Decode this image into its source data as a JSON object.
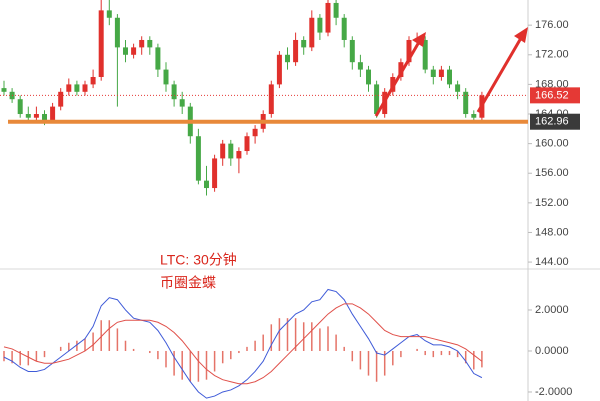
{
  "chart_data": [
    {
      "type": "candlestick",
      "annotations": [
        "LTC: 30分钟",
        "币圈金蝶"
      ],
      "up_color": "#e0302c",
      "down_color": "#46a846",
      "ylim": [
        143.2,
        179.4
      ],
      "yticks": [
        {
          "value": 144,
          "label": "144.00"
        },
        {
          "value": 148,
          "label": "148.00"
        },
        {
          "value": 152,
          "label": "152.00"
        },
        {
          "value": 156,
          "label": "156.00"
        },
        {
          "value": 160,
          "label": "160.00"
        },
        {
          "value": 164,
          "label": "164.00"
        },
        {
          "value": 168,
          "label": "168.00"
        },
        {
          "value": 172,
          "label": "172.00"
        },
        {
          "value": 176,
          "label": "176.00"
        }
      ],
      "last_price": 166.52,
      "last_price_color": "#e53935",
      "support_level": 162.96,
      "support_color": "#e8893a",
      "candles": [
        [
          167.5,
          168.5,
          166.5,
          167
        ],
        [
          167,
          167.5,
          165.5,
          166
        ],
        [
          166,
          166.5,
          163.5,
          164
        ],
        [
          164,
          165,
          162.8,
          163.5
        ],
        [
          163.5,
          165,
          163,
          164
        ],
        [
          164,
          164.5,
          162.5,
          163
        ],
        [
          163,
          165.5,
          162.8,
          165
        ],
        [
          165,
          167.5,
          164.5,
          167
        ],
        [
          167,
          168.8,
          166.5,
          168
        ],
        [
          168,
          168.5,
          166.5,
          167
        ],
        [
          167,
          168.5,
          166.5,
          168
        ],
        [
          168,
          170,
          167.5,
          169
        ],
        [
          169,
          180,
          168.5,
          178
        ],
        [
          178,
          179.5,
          176,
          177
        ],
        [
          177,
          177.5,
          165,
          173
        ],
        [
          173,
          174,
          171,
          172
        ],
        [
          172,
          173.5,
          171.5,
          173
        ],
        [
          173,
          174.5,
          172,
          174
        ],
        [
          174,
          174.5,
          172,
          173
        ],
        [
          173,
          173.5,
          169,
          170
        ],
        [
          170,
          171,
          167,
          168
        ],
        [
          168,
          168.5,
          165,
          166
        ],
        [
          166,
          167,
          164,
          165
        ],
        [
          165,
          165.5,
          160,
          161
        ],
        [
          161,
          162,
          154.5,
          155
        ],
        [
          155,
          157,
          153,
          154
        ],
        [
          154,
          158.5,
          153.5,
          158
        ],
        [
          158,
          160.5,
          157,
          160
        ],
        [
          160,
          160.5,
          157,
          158
        ],
        [
          158,
          159.5,
          156,
          159
        ],
        [
          159,
          161.5,
          158.5,
          161
        ],
        [
          161,
          162.5,
          160,
          162
        ],
        [
          162,
          164.5,
          161.5,
          164
        ],
        [
          164,
          168.5,
          163.5,
          168
        ],
        [
          168,
          172.5,
          167.5,
          172
        ],
        [
          172,
          173,
          170,
          171
        ],
        [
          171,
          175,
          170.5,
          174
        ],
        [
          174,
          174.5,
          172,
          173
        ],
        [
          173,
          178,
          172.5,
          177
        ],
        [
          177,
          177.5,
          174,
          175
        ],
        [
          175,
          180,
          174.5,
          179
        ],
        [
          179,
          179.5,
          176,
          177
        ],
        [
          177,
          177.5,
          173,
          174
        ],
        [
          174,
          174.5,
          170,
          171
        ],
        [
          171,
          172,
          169,
          170
        ],
        [
          170,
          170.5,
          167,
          168
        ],
        [
          168,
          168.5,
          163.5,
          164
        ],
        [
          164,
          167.5,
          163.5,
          167
        ],
        [
          167,
          169.5,
          166.5,
          169
        ],
        [
          169,
          171.5,
          168.5,
          171
        ],
        [
          171,
          174.5,
          170.5,
          174
        ],
        [
          174,
          175,
          173,
          174
        ],
        [
          174,
          174.5,
          169.5,
          170
        ],
        [
          170,
          170.5,
          168,
          169
        ],
        [
          169,
          170.5,
          168.5,
          170
        ],
        [
          170,
          170.5,
          167.5,
          168
        ],
        [
          168,
          168.5,
          166,
          167
        ],
        [
          167,
          167.5,
          163.5,
          164
        ],
        [
          164,
          164.5,
          162.8,
          163.5
        ],
        [
          163.5,
          167,
          163,
          166.52
        ]
      ]
    },
    {
      "type": "macd",
      "ylim": [
        -2.44,
        3.95
      ],
      "yticks": [
        {
          "value": 2,
          "label": "2.0000"
        },
        {
          "value": 0,
          "label": "0.0000"
        },
        {
          "value": -2,
          "label": "-2.0000"
        }
      ],
      "series": [
        {
          "color": "#3f5bd8",
          "values": [
            -0.3,
            -0.5,
            -0.8,
            -1.0,
            -1.0,
            -0.9,
            -0.6,
            -0.3,
            0,
            0.3,
            0.6,
            1.2,
            2.2,
            2.6,
            2.5,
            2.0,
            1.6,
            1.5,
            1.4,
            1.0,
            0.4,
            -0.3,
            -0.9,
            -1.5,
            -2.0,
            -2.3,
            -2.2,
            -2.0,
            -1.9,
            -1.7,
            -1.4,
            -1.0,
            -0.5,
            0.3,
            1.0,
            1.4,
            1.8,
            2.0,
            2.4,
            2.5,
            3.0,
            2.9,
            2.5,
            1.8,
            1.2,
            0.6,
            -0.1,
            -0.2,
            0.1,
            0.4,
            0.7,
            0.8,
            0.5,
            0.3,
            0.3,
            0.2,
            0.0,
            -0.5,
            -1.1,
            -1.3
          ]
        },
        {
          "color": "#e0504a",
          "values": [
            0.2,
            0.1,
            -0.1,
            -0.3,
            -0.5,
            -0.6,
            -0.6,
            -0.5,
            -0.4,
            -0.2,
            0,
            0.3,
            0.7,
            1.1,
            1.4,
            1.5,
            1.5,
            1.5,
            1.5,
            1.4,
            1.2,
            0.9,
            0.5,
            0,
            -0.5,
            -0.9,
            -1.2,
            -1.4,
            -1.5,
            -1.6,
            -1.6,
            -1.5,
            -1.3,
            -1.0,
            -0.6,
            -0.2,
            0.2,
            0.6,
            1.0,
            1.4,
            1.8,
            2.1,
            2.3,
            2.3,
            2.1,
            1.8,
            1.4,
            1.0,
            0.8,
            0.7,
            0.7,
            0.7,
            0.7,
            0.6,
            0.5,
            0.4,
            0.3,
            0.1,
            -0.2,
            -0.5
          ]
        }
      ],
      "histogram_color": "#e57368",
      "histogram": [
        -0.5,
        -0.6,
        -0.7,
        -0.7,
        -0.5,
        -0.3,
        0,
        0.2,
        0.4,
        0.5,
        0.6,
        0.9,
        1.5,
        1.5,
        1.1,
        0.5,
        0.1,
        0,
        -0.1,
        -0.4,
        -0.8,
        -1.2,
        -1.4,
        -1.5,
        -1.5,
        -1.4,
        -1.0,
        -0.6,
        -0.4,
        -0.1,
        0.2,
        0.5,
        0.8,
        1.3,
        1.6,
        1.6,
        1.6,
        1.4,
        1.4,
        1.1,
        1.2,
        0.8,
        0.2,
        -0.5,
        -0.9,
        -1.2,
        -1.5,
        -1.2,
        -0.7,
        -0.3,
        0,
        0.1,
        -0.2,
        -0.3,
        -0.2,
        -0.2,
        -0.3,
        -0.6,
        -0.9,
        -0.8
      ]
    }
  ]
}
